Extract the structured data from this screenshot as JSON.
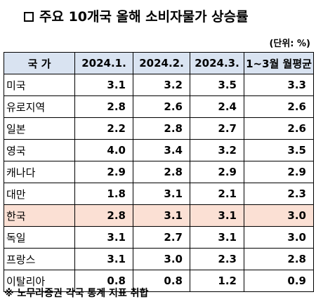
{
  "title": "주요 10개국 올해 소비자물가 상승률",
  "unit": "(단위: %)",
  "table": {
    "headers": [
      "국  가",
      "2024.1.",
      "2024.2.",
      "2024.3.",
      "1~3월 월평균"
    ],
    "rows": [
      {
        "country": "미국",
        "values": [
          "3.1",
          "3.2",
          "3.5",
          "3.3"
        ]
      },
      {
        "country": "유로지역",
        "values": [
          "2.8",
          "2.6",
          "2.4",
          "2.6"
        ]
      },
      {
        "country": "일본",
        "values": [
          "2.2",
          "2.8",
          "2.7",
          "2.6"
        ]
      },
      {
        "country": "영국",
        "values": [
          "4.0",
          "3.4",
          "3.2",
          "3.5"
        ]
      },
      {
        "country": "캐나다",
        "values": [
          "2.9",
          "2.8",
          "2.9",
          "2.9"
        ]
      },
      {
        "country": "대만",
        "values": [
          "1.8",
          "3.1",
          "2.1",
          "2.3"
        ]
      },
      {
        "country": "한국",
        "values": [
          "2.8",
          "3.1",
          "3.1",
          "3.0"
        ]
      },
      {
        "country": "독일",
        "values": [
          "3.1",
          "2.7",
          "3.1",
          "3.0"
        ]
      },
      {
        "country": "프랑스",
        "values": [
          "3.1",
          "3.0",
          "2.3",
          "2.8"
        ]
      },
      {
        "country": "이탈리아",
        "values": [
          "0.8",
          "0.8",
          "1.2",
          "0.9"
        ]
      }
    ],
    "highlight_row": 6,
    "highlight_color": "#fbe0d4",
    "header_color": "#d9e3f1"
  },
  "source": "※ 노무라증권 각국 통계 지표 취합"
}
